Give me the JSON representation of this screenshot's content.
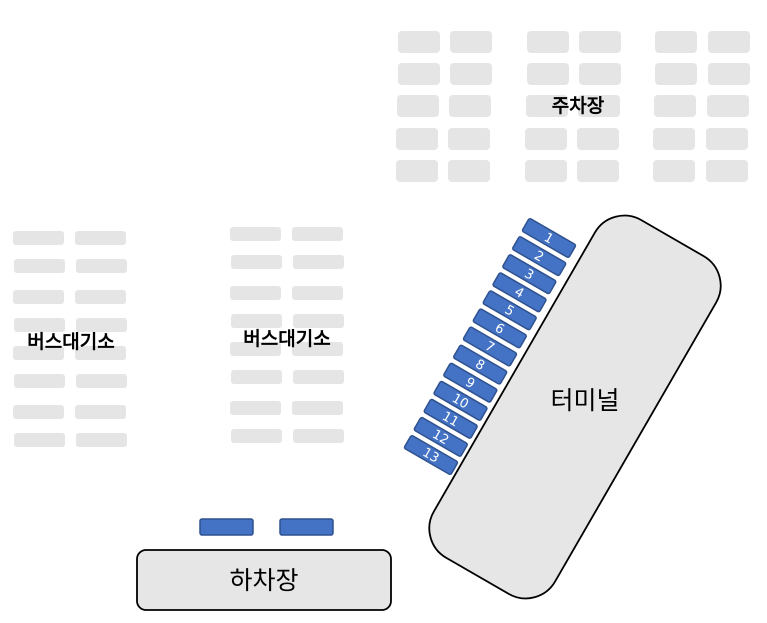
{
  "labels": {
    "parking": "주차장",
    "bus_wait_left": "버스대기소",
    "bus_wait_center": "버스대기소",
    "terminal": "터미널",
    "dropoff": "하차장"
  },
  "terminal_bays": [
    "1",
    "2",
    "3",
    "4",
    "5",
    "6",
    "7",
    "8",
    "9",
    "10",
    "11",
    "12",
    "13"
  ],
  "colors": {
    "bay": "#4472c4",
    "slot": "#e6e5e6",
    "building": "#e7e6e6"
  }
}
